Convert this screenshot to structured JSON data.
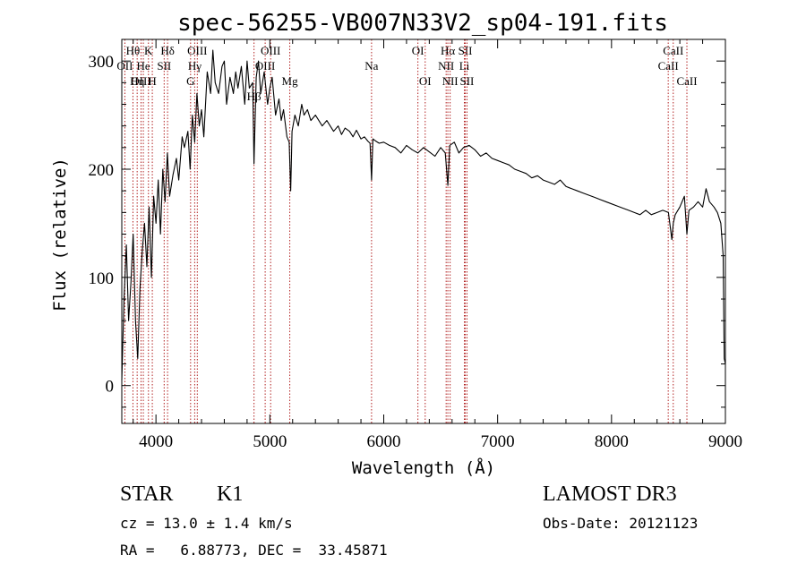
{
  "chart_data": {
    "type": "line",
    "title": "spec-56255-VB007N33V2_sp04-191.fits",
    "xlabel": "Wavelength (Å)",
    "ylabel": "Flux (relative)",
    "xlim": [
      3700,
      9000
    ],
    "ylim": [
      -35,
      320
    ],
    "xticks": [
      4000,
      5000,
      6000,
      7000,
      8000,
      9000
    ],
    "yticks": [
      0,
      100,
      200,
      300
    ],
    "grid": false,
    "series": [
      {
        "name": "flux",
        "x": [
          3700,
          3720,
          3740,
          3760,
          3780,
          3800,
          3820,
          3840,
          3860,
          3880,
          3900,
          3920,
          3940,
          3960,
          3980,
          4000,
          4020,
          4040,
          4060,
          4080,
          4100,
          4120,
          4150,
          4180,
          4200,
          4230,
          4250,
          4280,
          4300,
          4320,
          4340,
          4360,
          4380,
          4400,
          4420,
          4450,
          4480,
          4500,
          4520,
          4550,
          4580,
          4600,
          4620,
          4650,
          4680,
          4700,
          4720,
          4750,
          4780,
          4800,
          4820,
          4850,
          4861,
          4880,
          4900,
          4920,
          4950,
          4980,
          5000,
          5020,
          5050,
          5080,
          5100,
          5120,
          5150,
          5170,
          5183,
          5195,
          5220,
          5250,
          5280,
          5300,
          5330,
          5360,
          5400,
          5430,
          5460,
          5500,
          5530,
          5560,
          5600,
          5630,
          5660,
          5700,
          5730,
          5760,
          5800,
          5830,
          5860,
          5880,
          5893,
          5905,
          5930,
          5960,
          6000,
          6050,
          6100,
          6150,
          6200,
          6250,
          6300,
          6350,
          6400,
          6450,
          6500,
          6540,
          6563,
          6580,
          6620,
          6660,
          6700,
          6750,
          6800,
          6850,
          6900,
          6950,
          7000,
          7050,
          7100,
          7150,
          7200,
          7250,
          7300,
          7350,
          7400,
          7450,
          7500,
          7550,
          7600,
          7650,
          7700,
          7750,
          7800,
          7850,
          7900,
          7950,
          8000,
          8050,
          8100,
          8150,
          8200,
          8250,
          8300,
          8350,
          8400,
          8450,
          8500,
          8530,
          8542,
          8560,
          8600,
          8640,
          8662,
          8680,
          8720,
          8760,
          8800,
          8830,
          8860,
          8900,
          8930,
          8960,
          8980,
          8990,
          9000
        ],
        "y": [
          5,
          80,
          130,
          60,
          95,
          140,
          60,
          25,
          90,
          125,
          150,
          110,
          165,
          100,
          175,
          150,
          190,
          140,
          200,
          170,
          215,
          175,
          195,
          210,
          190,
          230,
          220,
          235,
          200,
          250,
          225,
          270,
          240,
          255,
          230,
          290,
          270,
          310,
          280,
          270,
          295,
          300,
          260,
          285,
          270,
          290,
          275,
          295,
          260,
          300,
          275,
          280,
          205,
          285,
          300,
          270,
          290,
          260,
          275,
          285,
          250,
          265,
          245,
          255,
          230,
          225,
          180,
          235,
          250,
          240,
          260,
          250,
          255,
          245,
          250,
          245,
          240,
          245,
          240,
          235,
          240,
          232,
          238,
          235,
          230,
          236,
          228,
          230,
          226,
          224,
          190,
          228,
          226,
          224,
          225,
          222,
          220,
          215,
          222,
          218,
          215,
          220,
          216,
          212,
          220,
          215,
          185,
          222,
          225,
          215,
          220,
          222,
          218,
          212,
          215,
          210,
          208,
          206,
          204,
          200,
          198,
          196,
          192,
          194,
          190,
          188,
          186,
          190,
          184,
          182,
          180,
          178,
          176,
          174,
          172,
          170,
          168,
          166,
          164,
          162,
          160,
          158,
          162,
          158,
          160,
          162,
          160,
          135,
          150,
          158,
          165,
          175,
          140,
          162,
          165,
          170,
          165,
          182,
          170,
          165,
          160,
          150,
          120,
          25,
          20
        ]
      }
    ],
    "line_markers": [
      {
        "label": "Hθ",
        "x": 3798,
        "row": 0
      },
      {
        "label": "OII",
        "x": 3727,
        "row": 1
      },
      {
        "label": "OIII",
        "x": 3869,
        "row": 2
      },
      {
        "label": "He",
        "x": 3889,
        "row": 1
      },
      {
        "label": "Hη",
        "x": 3835,
        "row": 2
      },
      {
        "label": "K",
        "x": 3934,
        "row": 0
      },
      {
        "label": "SII",
        "x": 4072,
        "row": 1
      },
      {
        "label": "H",
        "x": 3968,
        "row": 2
      },
      {
        "label": "Hδ",
        "x": 4102,
        "row": 0
      },
      {
        "label": "OIII",
        "x": 4363,
        "row": 0
      },
      {
        "label": "Hγ",
        "x": 4340,
        "row": 1
      },
      {
        "label": "G",
        "x": 4304,
        "row": 2
      },
      {
        "label": "OIII",
        "x": 5007,
        "row": 0
      },
      {
        "label": "OIII",
        "x": 4959,
        "row": 1
      },
      {
        "label": "Hβ",
        "x": 4861,
        "row": 3
      },
      {
        "label": "Mg",
        "x": 5175,
        "row": 2
      },
      {
        "label": "Na",
        "x": 5893,
        "row": 1
      },
      {
        "label": "OI",
        "x": 6300,
        "row": 0
      },
      {
        "label": "OI",
        "x": 6364,
        "row": 2
      },
      {
        "label": "Hα",
        "x": 6563,
        "row": 0
      },
      {
        "label": "SII",
        "x": 6716,
        "row": 0
      },
      {
        "label": "NII",
        "x": 6548,
        "row": 1
      },
      {
        "label": "Li",
        "x": 6708,
        "row": 1
      },
      {
        "label": "NII",
        "x": 6583,
        "row": 2
      },
      {
        "label": "SII",
        "x": 6731,
        "row": 2
      },
      {
        "label": "CaII",
        "x": 8542,
        "row": 0
      },
      {
        "label": "CaII",
        "x": 8498,
        "row": 1
      },
      {
        "label": "CaII",
        "x": 8662,
        "row": 2
      }
    ],
    "annotations": {
      "object_class": "STAR",
      "subclass": "K1",
      "survey": "LAMOST DR3",
      "redshift_line": "cz = 13.0 ± 1.4 km/s",
      "obs_date_line": "Obs-Date: 20121123",
      "coords_line": "RA =   6.88773, DEC =  33.45871"
    },
    "colors": {
      "spectrum": "#000000",
      "marker_line": "#b22222",
      "axes": "#000000"
    }
  }
}
